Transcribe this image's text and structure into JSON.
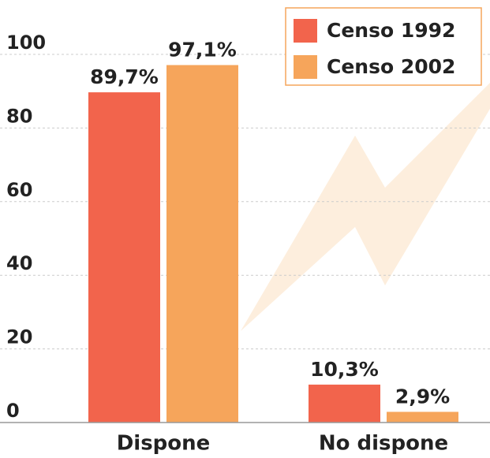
{
  "chart_data": {
    "type": "bar",
    "categories": [
      "Dispone",
      "No dispone"
    ],
    "series": [
      {
        "name": "Censo 1992",
        "color": "#f2644c",
        "values": [
          89.7,
          10.3
        ],
        "value_labels": [
          "89,7%",
          "10,3%"
        ]
      },
      {
        "name": "Censo 2002",
        "color": "#f6a55b",
        "values": [
          97.1,
          2.9
        ],
        "value_labels": [
          "97,1%",
          "2,9%"
        ]
      }
    ],
    "ylim": [
      0,
      100
    ],
    "yticks": [
      0,
      20,
      40,
      60,
      80,
      100
    ],
    "grid": true,
    "legend": "top-right"
  }
}
